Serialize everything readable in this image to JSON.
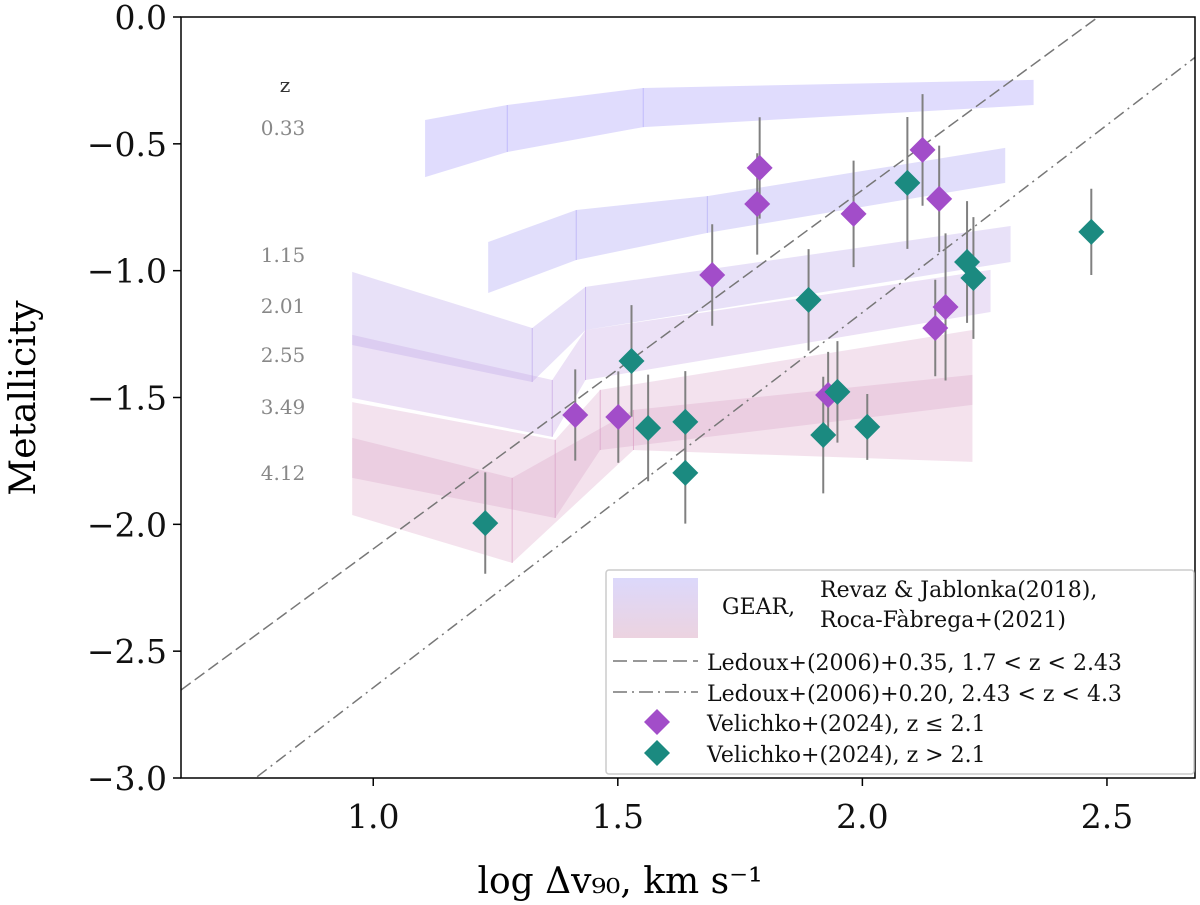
{
  "chart_data": {
    "type": "scatter",
    "xlabel": "log Δv₉₀, km s⁻¹",
    "ylabel": "Metallicity",
    "xlim": [
      0.607,
      2.68
    ],
    "ylim": [
      -3.0,
      0.0
    ],
    "xticks": [
      1.0,
      1.5,
      2.0,
      2.5
    ],
    "xtick_labels": [
      "1.0",
      "1.5",
      "2.0",
      "2.5"
    ],
    "yticks": [
      0.0,
      -0.5,
      -1.0,
      -1.5,
      -2.0,
      -2.5,
      -3.0
    ],
    "ytick_labels": [
      "0.0",
      "−0.5",
      "−1.0",
      "−1.5",
      "−2.0",
      "−2.5",
      "−3.0"
    ],
    "grid": false,
    "legend_position": "bottom-right",
    "z_header": "z",
    "bands": [
      {
        "z": "0.33",
        "color": "rgba(180,172,250,0.42)",
        "x": [
          1.106,
          1.274,
          1.552,
          2.35
        ],
        "upper": [
          -0.406,
          -0.347,
          -0.28,
          -0.248
        ],
        "lower": [
          -0.631,
          -0.532,
          -0.434,
          -0.347
        ]
      },
      {
        "z": "1.15",
        "color": "rgba(180,172,245,0.40)",
        "x": [
          1.235,
          1.415,
          1.683,
          2.292
        ],
        "upper": [
          -0.887,
          -0.761,
          -0.706,
          -0.516
        ],
        "lower": [
          -1.088,
          -0.958,
          -0.851,
          -0.654
        ]
      },
      {
        "z": "2.01",
        "color": "rgba(190,168,235,0.35)",
        "x": [
          0.957,
          1.325,
          1.434,
          2.303
        ],
        "upper": [
          -1.005,
          -1.226,
          -1.064,
          -0.824
        ],
        "lower": [
          -1.293,
          -1.439,
          -1.234,
          -0.966
        ]
      },
      {
        "z": "2.55",
        "color": "rgba(198,165,228,0.33)",
        "x": [
          0.957,
          1.366,
          1.434,
          2.262
        ],
        "upper": [
          -1.253,
          -1.431,
          -1.234,
          -0.997
        ],
        "lower": [
          -1.502,
          -1.655,
          -1.431,
          -1.163
        ]
      },
      {
        "z": "3.49",
        "color": "rgba(215,160,200,0.30)",
        "x": [
          0.957,
          1.372,
          1.464,
          2.225
        ],
        "upper": [
          -1.518,
          -1.667,
          -1.47,
          -1.234
        ],
        "lower": [
          -1.817,
          -1.975,
          -1.707,
          -1.529
        ]
      },
      {
        "z": "4.12",
        "color": "rgba(218,158,195,0.30)",
        "x": [
          0.957,
          1.284,
          1.532,
          2.225
        ],
        "upper": [
          -1.659,
          -1.817,
          -1.549,
          -1.411
        ],
        "lower": [
          -1.963,
          -2.152,
          -1.707,
          -1.754
        ]
      }
    ],
    "lines": [
      {
        "name": "Ledoux+(2006)+0.35, 1.7 < z < 2.43",
        "slope": 1.415,
        "intercept": -3.512,
        "style": "dashed",
        "color": "#777777"
      },
      {
        "name": "Ledoux+(2006)+0.20, 2.43 < z < 4.3",
        "slope": 1.479,
        "intercept": -4.123,
        "style": "dashdot",
        "color": "#777777"
      }
    ],
    "series": [
      {
        "name": "Velichko+(2024), z ≤ 2.1",
        "color": "#a24dc9",
        "x": [
          1.79,
          1.785,
          1.693,
          1.413,
          1.501,
          1.982,
          2.123,
          2.157,
          2.17,
          2.149,
          1.93
        ],
        "y": [
          -0.595,
          -0.737,
          -1.017,
          -1.569,
          -1.577,
          -0.776,
          -0.524,
          -0.717,
          -1.143,
          -1.226,
          -1.49
        ],
        "yerr": [
          0.2,
          0.2,
          0.2,
          0.18,
          0.18,
          0.21,
          0.22,
          0.21,
          0.29,
          0.19,
          0.17
        ]
      },
      {
        "name": "Velichko+(2024), z > 2.1",
        "color": "#1b8a80",
        "x": [
          1.229,
          1.528,
          1.562,
          1.638,
          1.638,
          1.89,
          2.092,
          2.214,
          2.227,
          2.468,
          1.949,
          1.92,
          2.01
        ],
        "y": [
          -1.995,
          -1.356,
          -1.62,
          -1.596,
          -1.797,
          -1.115,
          -0.654,
          -0.966,
          -1.029,
          -0.847,
          -1.478,
          -1.648,
          -1.616
        ],
        "yerr": [
          0.2,
          0.22,
          0.21,
          0.2,
          0.2,
          0.2,
          0.26,
          0.24,
          0.24,
          0.17,
          0.2,
          0.23,
          0.13
        ]
      }
    ],
    "legend": {
      "gear_label": "GEAR,",
      "gear_ref1": "Revaz & Jablonka(2018),",
      "gear_ref2": "Roca-Fàbrega+(2021)",
      "dashed_label": "Ledoux+(2006)+0.35, 1.7 < z < 2.43",
      "dashdot_label": "Ledoux+(2006)+0.20, 2.43 < z < 4.3",
      "purple_label": "Velichko+(2024), z ≤ 2.1",
      "teal_label": "Velichko+(2024), z > 2.1"
    }
  }
}
